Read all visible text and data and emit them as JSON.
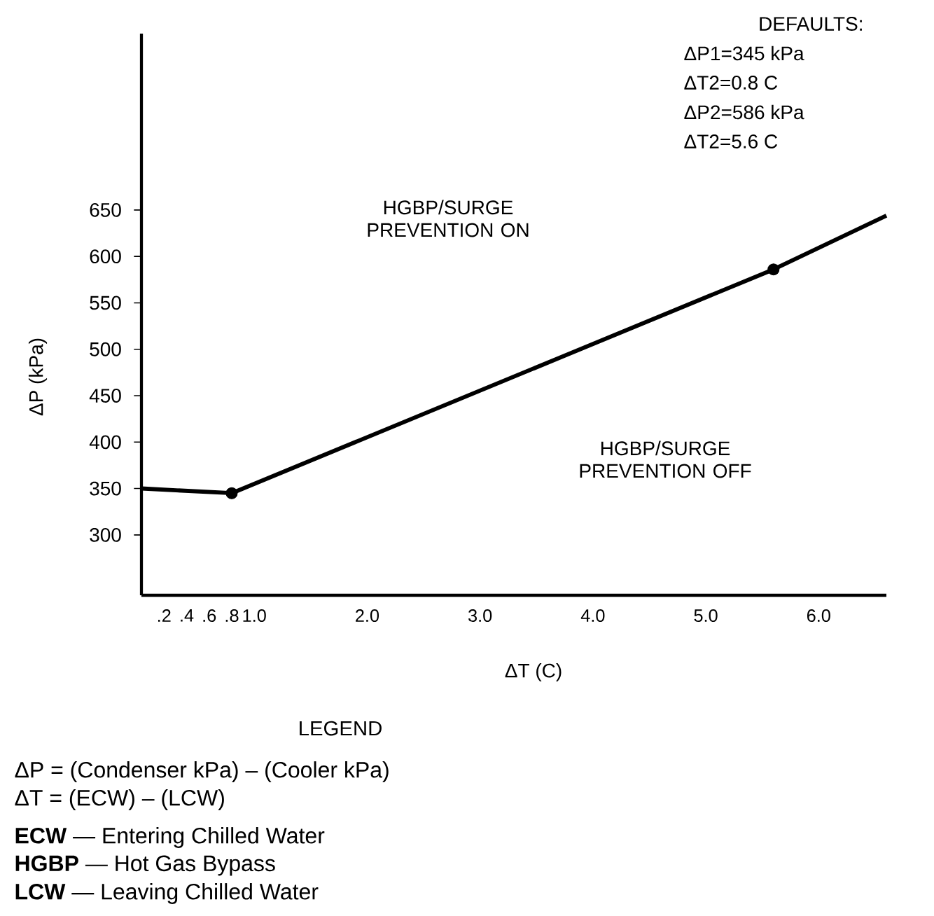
{
  "chart_data": {
    "type": "line",
    "xlabel": "ΔT (C)",
    "ylabel": "ΔP (kPa)",
    "series": [
      {
        "color": "#000000",
        "x": [
          0,
          0.8,
          5.6,
          6.6
        ],
        "values": [
          350,
          345,
          586,
          644
        ],
        "marker": "none"
      },
      {
        "type": "scatter",
        "color": "#000000",
        "x": [
          0.8,
          5.6
        ],
        "values": [
          345,
          586
        ],
        "marker": "circle"
      }
    ],
    "xlim": [
      0,
      6.6
    ],
    "ylim": [
      235,
      840
    ],
    "xticks": [
      {
        "value": 0.2,
        "label": ".2"
      },
      {
        "value": 0.4,
        "label": ".4"
      },
      {
        "value": 0.6,
        "label": ".6"
      },
      {
        "value": 0.8,
        "label": ".8"
      },
      {
        "value": 1.0,
        "label": "1.0"
      },
      {
        "value": 2.0,
        "label": "2.0"
      },
      {
        "value": 3.0,
        "label": "3.0"
      },
      {
        "value": 4.0,
        "label": "4.0"
      },
      {
        "value": 5.0,
        "label": "5.0"
      },
      {
        "value": 6.0,
        "label": "6.0"
      }
    ],
    "yticks": [
      300,
      350,
      400,
      450,
      500,
      550,
      600,
      650
    ],
    "grid": false,
    "annotations": [
      "DEFAULTS:",
      "ΔP1=345 kPa",
      "ΔT2=0.8 C",
      "ΔP2=586 kPa",
      "ΔT2=5.6 C",
      "HGBP/SURGE PREVENTION ON",
      "HGBP/SURGE PREVENTION OFF",
      "LEGEND",
      "ΔP = (Condenser kPa) – (Cooler kPa)",
      "ΔT = (ECW) – (LCW)",
      "**ECW** — Entering Chilled Water",
      "**HGBP** — Hot Gas Bypass",
      "**LCW** — Leaving Chilled Water"
    ]
  }
}
